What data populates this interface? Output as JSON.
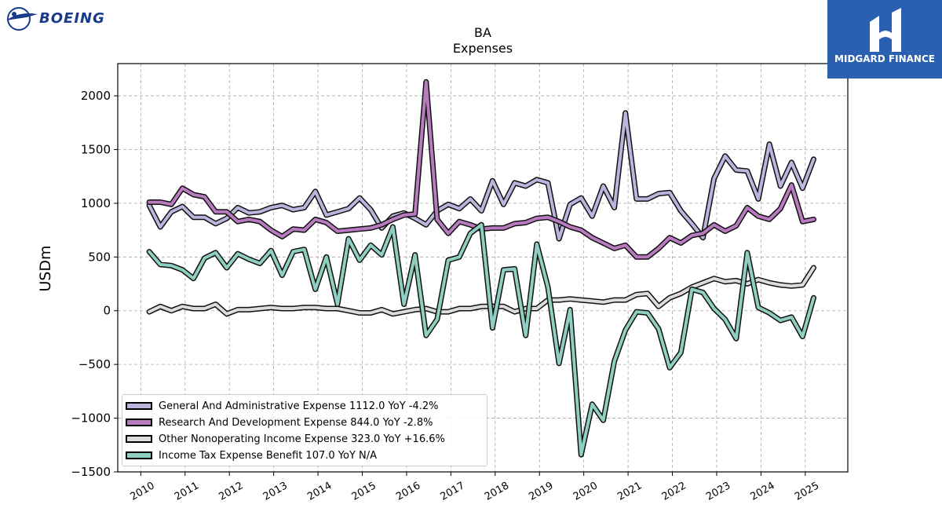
{
  "brand": {
    "name": "BOEING"
  },
  "sponsor": {
    "name": "MIDGARD FINANCE",
    "bg_color": "#2b5fb0"
  },
  "chart_data": {
    "type": "line",
    "title": "BA",
    "subtitle": "Expenses",
    "ylabel": "USDm",
    "xlabel": "",
    "xlim": [
      2009.48,
      2025.96
    ],
    "ylim": [
      -1500,
      2300
    ],
    "grid": true,
    "legend_position": "lower-left",
    "x_ticks": [
      2010,
      2011,
      2012,
      2013,
      2014,
      2015,
      2016,
      2017,
      2018,
      2019,
      2020,
      2021,
      2022,
      2023,
      2024,
      2025
    ],
    "y_ticks": [
      -1500,
      -1000,
      -500,
      0,
      500,
      1000,
      1500,
      2000
    ],
    "y_tick_labels": [
      "−1500",
      "−1000",
      "−500",
      "0",
      "500",
      "1000",
      "1500",
      "2000"
    ],
    "x": [
      2010.19,
      2010.44,
      2010.69,
      2010.94,
      2011.19,
      2011.44,
      2011.69,
      2011.94,
      2012.19,
      2012.44,
      2012.69,
      2012.94,
      2013.19,
      2013.44,
      2013.69,
      2013.94,
      2014.19,
      2014.44,
      2014.69,
      2014.94,
      2015.19,
      2015.44,
      2015.69,
      2015.94,
      2016.19,
      2016.44,
      2016.69,
      2016.94,
      2017.19,
      2017.44,
      2017.69,
      2017.94,
      2018.19,
      2018.44,
      2018.69,
      2018.94,
      2019.19,
      2019.44,
      2019.69,
      2019.94,
      2020.19,
      2020.44,
      2020.69,
      2020.94,
      2021.19,
      2021.44,
      2021.69,
      2021.94,
      2022.19,
      2022.44,
      2022.69,
      2022.94,
      2023.19,
      2023.44,
      2023.69,
      2023.94,
      2024.19,
      2024.44,
      2024.69,
      2024.94,
      2025.19
    ],
    "series": [
      {
        "name": "General And Administrative Expense",
        "legend_label": "General And Administrative Expense  1112.0 YoY -4.2%",
        "color": "#b9b5dd",
        "values": [
          980,
          780,
          920,
          970,
          870,
          870,
          810,
          860,
          960,
          910,
          920,
          960,
          980,
          940,
          960,
          1110,
          890,
          920,
          950,
          1050,
          940,
          770,
          880,
          910,
          860,
          800,
          930,
          990,
          950,
          1040,
          930,
          1210,
          990,
          1190,
          1160,
          1220,
          1190,
          670,
          990,
          1050,
          880,
          1160,
          960,
          1840,
          1040,
          1040,
          1090,
          1100,
          930,
          810,
          680,
          1230,
          1440,
          1310,
          1300,
          1040,
          1550,
          1160,
          1380,
          1140,
          1410
        ]
      },
      {
        "name": "Research And Development Expense",
        "legend_label": "Research And Development Expense  844.0 YoY -2.8%",
        "color": "#b97bbf",
        "values": [
          1010,
          1010,
          990,
          1140,
          1080,
          1060,
          920,
          920,
          830,
          850,
          830,
          750,
          690,
          760,
          750,
          850,
          820,
          740,
          750,
          760,
          770,
          800,
          850,
          890,
          900,
          2130,
          850,
          720,
          830,
          800,
          760,
          770,
          770,
          810,
          820,
          860,
          870,
          830,
          780,
          750,
          680,
          630,
          580,
          610,
          500,
          500,
          580,
          680,
          630,
          700,
          720,
          800,
          740,
          790,
          960,
          880,
          850,
          950,
          1170,
          830,
          850
        ]
      },
      {
        "name": "Other Nonoperating Income Expense",
        "legend_label": "Other Nonoperating Income Expense  323.0 YoY +16.6%",
        "color": "#dcdcdc",
        "values": [
          -10,
          40,
          0,
          40,
          20,
          20,
          60,
          -30,
          10,
          10,
          20,
          30,
          20,
          20,
          30,
          30,
          20,
          20,
          0,
          -20,
          -20,
          10,
          -30,
          -10,
          10,
          20,
          -10,
          -10,
          20,
          20,
          40,
          40,
          40,
          -10,
          20,
          20,
          100,
          100,
          110,
          100,
          90,
          80,
          100,
          100,
          150,
          160,
          40,
          120,
          160,
          220,
          260,
          300,
          270,
          280,
          250,
          290,
          260,
          240,
          230,
          240,
          400
        ]
      },
      {
        "name": "Income Tax Expense Benefit",
        "legend_label": "Income Tax Expense Benefit  107.0 YoY N/A",
        "color": "#8fcfc2",
        "values": [
          550,
          430,
          420,
          380,
          300,
          490,
          540,
          400,
          530,
          480,
          440,
          560,
          330,
          550,
          570,
          200,
          500,
          60,
          670,
          470,
          610,
          520,
          780,
          60,
          520,
          -230,
          -80,
          470,
          500,
          720,
          800,
          -160,
          380,
          390,
          -230,
          620,
          220,
          -490,
          10,
          -1340,
          -870,
          -1020,
          -470,
          -180,
          -10,
          -20,
          -170,
          -530,
          -390,
          200,
          170,
          20,
          -80,
          -260,
          540,
          30,
          -20,
          -90,
          -60,
          -240,
          120
        ]
      }
    ]
  }
}
